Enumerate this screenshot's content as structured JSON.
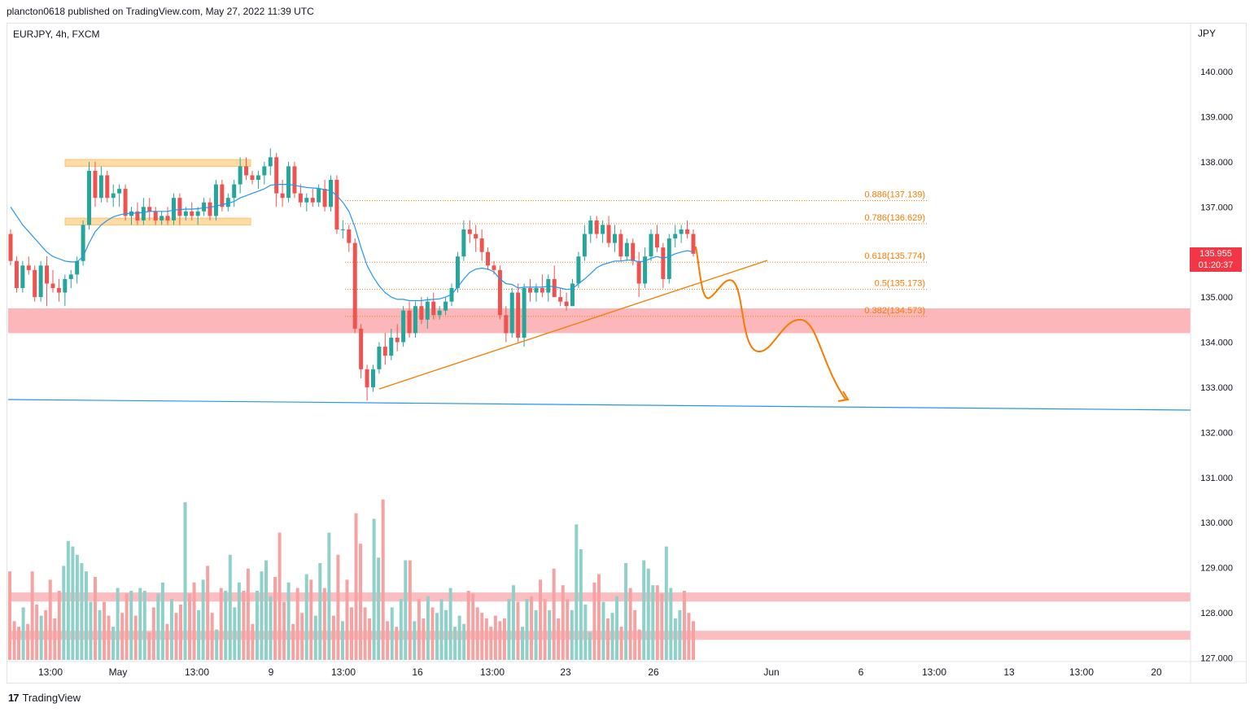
{
  "header": {
    "published_text": "plancton0618 published on TradingView.com, May 27, 2022 11:39 UTC",
    "symbol_text": "EURJPY, 4h, FXCM",
    "currency": "JPY"
  },
  "footer": {
    "brand_mark": "17",
    "brand_name": "TradingView"
  },
  "last_price": {
    "price": "135.955",
    "countdown": "01:20:37"
  },
  "colors": {
    "up": "#26a69a",
    "down": "#ef5350",
    "ema": "#2196f3",
    "fib": "#f57c00",
    "zone_red": "#f77c80",
    "zone_orange": "#ffb74d",
    "volume_up": "#8fd0c9",
    "volume_down": "#f4a3a2"
  },
  "chart_data": {
    "type": "candlestick",
    "title": "EURJPY, 4h, FXCM",
    "ylabel": "JPY",
    "ylim": [
      126.9,
      141.0
    ],
    "y_ticks": [
      "140.000",
      "139.000",
      "138.000",
      "137.000",
      "136.000",
      "135.000",
      "134.000",
      "133.000",
      "132.000",
      "131.000",
      "130.000",
      "129.000",
      "128.000",
      "127.000"
    ],
    "x_ticks": [
      "13:00",
      "May",
      "13:00",
      "9",
      "13:00",
      "16",
      "13:00",
      "23",
      "26",
      "Jun",
      "6",
      "13:00",
      "13",
      "13:00",
      "20"
    ],
    "fib_levels": [
      {
        "ratio": "0.886",
        "price": "137.139",
        "label": "0.886(137.139)"
      },
      {
        "ratio": "0.786",
        "price": "136.629",
        "label": "0.786(136.629)"
      },
      {
        "ratio": "0.618",
        "price": "135.774",
        "label": "0.618(135.774)"
      },
      {
        "ratio": "0.5",
        "price": "135.173",
        "label": "0.5(135.173)"
      },
      {
        "ratio": "0.382",
        "price": "134.573",
        "label": "0.382(134.573)"
      }
    ],
    "support_zone": {
      "top": 134.75,
      "bottom": 134.2
    },
    "range_zones": [
      {
        "top": 138.05,
        "bottom": 137.9
      },
      {
        "top": 136.75,
        "bottom": 136.6
      }
    ],
    "volume_zones": [
      {
        "top": 128.45,
        "bottom": 128.25
      },
      {
        "top": 127.6,
        "bottom": 127.4
      }
    ],
    "candles": [
      [
        136.4,
        136.5,
        135.7,
        135.8
      ],
      [
        135.8,
        135.9,
        135.1,
        135.2
      ],
      [
        135.2,
        135.8,
        135.1,
        135.7
      ],
      [
        135.7,
        135.9,
        135.5,
        135.6
      ],
      [
        135.6,
        135.7,
        134.9,
        135.0
      ],
      [
        135.0,
        135.8,
        134.9,
        135.7
      ],
      [
        135.7,
        135.9,
        134.8,
        135.3
      ],
      [
        135.3,
        135.6,
        135.1,
        135.2
      ],
      [
        135.2,
        135.4,
        134.9,
        135.1
      ],
      [
        135.1,
        135.5,
        134.8,
        135.4
      ],
      [
        135.4,
        135.6,
        135.2,
        135.5
      ],
      [
        135.5,
        135.9,
        135.3,
        135.8
      ],
      [
        135.8,
        136.7,
        135.7,
        136.6
      ],
      [
        136.6,
        138.0,
        136.5,
        137.8
      ],
      [
        137.8,
        138.0,
        137.0,
        137.2
      ],
      [
        137.2,
        137.9,
        137.1,
        137.7
      ],
      [
        137.7,
        137.8,
        137.1,
        137.2
      ],
      [
        137.2,
        137.5,
        137.0,
        137.3
      ],
      [
        137.3,
        137.5,
        137.0,
        137.4
      ],
      [
        137.4,
        137.5,
        136.7,
        136.8
      ],
      [
        136.8,
        137.0,
        136.6,
        136.9
      ],
      [
        136.9,
        137.1,
        136.6,
        136.7
      ],
      [
        136.7,
        137.2,
        136.6,
        137.0
      ],
      [
        137.0,
        137.2,
        136.7,
        136.9
      ],
      [
        136.9,
        137.0,
        136.6,
        136.7
      ],
      [
        136.7,
        136.9,
        136.6,
        136.8
      ],
      [
        136.8,
        137.0,
        136.6,
        136.7
      ],
      [
        136.7,
        137.3,
        136.6,
        137.2
      ],
      [
        137.2,
        137.3,
        136.6,
        136.8
      ],
      [
        136.8,
        137.0,
        136.7,
        136.9
      ],
      [
        136.9,
        137.1,
        136.7,
        136.8
      ],
      [
        136.8,
        137.0,
        136.6,
        136.9
      ],
      [
        136.9,
        137.2,
        136.8,
        137.1
      ],
      [
        137.1,
        137.2,
        136.7,
        136.8
      ],
      [
        136.8,
        137.6,
        136.7,
        137.5
      ],
      [
        137.5,
        137.6,
        136.9,
        137.0
      ],
      [
        137.0,
        137.3,
        136.9,
        137.2
      ],
      [
        137.2,
        137.6,
        137.0,
        137.5
      ],
      [
        137.5,
        138.1,
        137.3,
        137.9
      ],
      [
        137.9,
        138.1,
        137.6,
        137.7
      ],
      [
        137.7,
        137.8,
        137.5,
        137.6
      ],
      [
        137.6,
        137.8,
        137.4,
        137.7
      ],
      [
        137.7,
        138.0,
        137.5,
        137.9
      ],
      [
        137.9,
        138.3,
        137.7,
        138.1
      ],
      [
        138.1,
        138.2,
        137.0,
        137.3
      ],
      [
        137.3,
        137.6,
        137.0,
        137.2
      ],
      [
        137.2,
        138.0,
        137.1,
        137.9
      ],
      [
        137.9,
        138.0,
        137.2,
        137.3
      ],
      [
        137.3,
        137.5,
        137.0,
        137.1
      ],
      [
        137.1,
        137.3,
        136.9,
        137.2
      ],
      [
        137.2,
        137.4,
        137.0,
        137.1
      ],
      [
        137.1,
        137.5,
        137.0,
        137.4
      ],
      [
        137.4,
        137.6,
        136.9,
        137.0
      ],
      [
        137.0,
        137.7,
        136.9,
        137.6
      ],
      [
        137.6,
        137.7,
        136.4,
        136.5
      ],
      [
        136.5,
        136.7,
        136.3,
        136.5
      ],
      [
        136.5,
        136.6,
        136.0,
        136.2
      ],
      [
        136.2,
        136.3,
        134.2,
        134.3
      ],
      [
        134.3,
        134.4,
        133.2,
        133.4
      ],
      [
        133.4,
        133.5,
        132.7,
        133.0
      ],
      [
        133.0,
        133.5,
        132.9,
        133.4
      ],
      [
        133.4,
        134.0,
        133.3,
        133.9
      ],
      [
        133.9,
        134.2,
        133.5,
        133.7
      ],
      [
        133.7,
        134.3,
        133.6,
        134.1
      ],
      [
        134.1,
        134.4,
        133.8,
        134.0
      ],
      [
        134.0,
        134.8,
        133.9,
        134.7
      ],
      [
        134.7,
        134.9,
        134.1,
        134.2
      ],
      [
        134.2,
        134.9,
        134.1,
        134.8
      ],
      [
        134.8,
        135.0,
        134.4,
        134.5
      ],
      [
        134.5,
        135.0,
        134.3,
        134.9
      ],
      [
        134.9,
        135.1,
        134.5,
        134.6
      ],
      [
        134.6,
        134.8,
        134.5,
        134.7
      ],
      [
        134.7,
        135.0,
        134.6,
        134.9
      ],
      [
        134.9,
        135.3,
        134.8,
        135.2
      ],
      [
        135.2,
        136.0,
        135.1,
        135.9
      ],
      [
        135.9,
        136.7,
        135.8,
        136.5
      ],
      [
        136.5,
        136.7,
        136.2,
        136.4
      ],
      [
        136.4,
        136.6,
        136.0,
        136.3
      ],
      [
        136.3,
        136.5,
        135.8,
        136.0
      ],
      [
        136.0,
        136.1,
        135.6,
        135.7
      ],
      [
        135.7,
        135.8,
        135.5,
        135.6
      ],
      [
        135.6,
        135.7,
        134.5,
        134.6
      ],
      [
        134.6,
        134.8,
        134.0,
        134.2
      ],
      [
        134.2,
        135.2,
        134.1,
        135.1
      ],
      [
        135.1,
        135.3,
        134.0,
        134.1
      ],
      [
        134.1,
        135.3,
        133.9,
        135.2
      ],
      [
        135.2,
        135.4,
        134.9,
        135.1
      ],
      [
        135.1,
        135.3,
        134.9,
        135.2
      ],
      [
        135.2,
        135.5,
        135.0,
        135.1
      ],
      [
        135.1,
        135.5,
        134.9,
        135.4
      ],
      [
        135.4,
        135.7,
        135.1,
        135.0
      ],
      [
        135.0,
        135.2,
        134.8,
        134.9
      ],
      [
        134.9,
        135.1,
        134.7,
        134.8
      ],
      [
        134.8,
        135.4,
        134.8,
        135.3
      ],
      [
        135.3,
        136.0,
        135.2,
        135.9
      ],
      [
        135.9,
        136.6,
        135.8,
        136.4
      ],
      [
        136.4,
        136.8,
        136.2,
        136.7
      ],
      [
        136.7,
        136.8,
        136.3,
        136.4
      ],
      [
        136.4,
        136.7,
        136.2,
        136.6
      ],
      [
        136.6,
        136.8,
        136.1,
        136.2
      ],
      [
        136.2,
        136.6,
        136.0,
        136.4
      ],
      [
        136.4,
        136.5,
        135.8,
        135.9
      ],
      [
        135.9,
        136.3,
        135.8,
        136.2
      ],
      [
        136.2,
        136.3,
        135.7,
        135.8
      ],
      [
        135.8,
        136.0,
        135.0,
        135.3
      ],
      [
        135.3,
        136.1,
        135.2,
        135.9
      ],
      [
        135.9,
        136.5,
        135.8,
        136.4
      ],
      [
        136.4,
        136.6,
        136.0,
        136.1
      ],
      [
        136.1,
        136.2,
        135.2,
        135.4
      ],
      [
        135.4,
        136.4,
        135.3,
        136.3
      ],
      [
        136.3,
        136.6,
        136.1,
        136.4
      ],
      [
        136.4,
        136.6,
        136.2,
        136.5
      ],
      [
        136.5,
        136.7,
        136.3,
        136.4
      ],
      [
        136.4,
        136.5,
        135.9,
        135.96
      ]
    ],
    "ema": [
      137.0,
      136.8,
      136.6,
      136.45,
      136.3,
      136.15,
      136.0,
      135.9,
      135.85,
      135.8,
      135.78,
      135.78,
      135.9,
      136.2,
      136.45,
      136.6,
      136.7,
      136.78,
      136.82,
      136.85,
      136.86,
      136.86,
      136.88,
      136.9,
      136.9,
      136.9,
      136.9,
      136.93,
      136.94,
      136.95,
      136.95,
      136.96,
      136.98,
      136.99,
      137.02,
      137.05,
      137.08,
      137.12,
      137.2,
      137.25,
      137.3,
      137.35,
      137.4,
      137.48,
      137.5,
      137.5,
      137.5,
      137.48,
      137.45,
      137.43,
      137.42,
      137.41,
      137.38,
      137.36,
      137.25,
      137.1,
      136.9,
      136.55,
      136.1,
      135.7,
      135.45,
      135.25,
      135.1,
      135.0,
      134.95,
      134.95,
      134.92,
      134.92,
      134.92,
      134.94,
      134.95,
      134.96,
      135.0,
      135.06,
      135.22,
      135.4,
      135.55,
      135.62,
      135.64,
      135.62,
      135.56,
      135.4,
      135.3,
      135.28,
      135.2,
      135.22,
      135.22,
      135.22,
      135.22,
      135.24,
      135.23,
      135.2,
      135.17,
      135.18,
      135.3,
      135.4,
      135.52,
      135.65,
      135.72,
      135.76,
      135.8,
      135.8,
      135.82,
      135.82,
      135.78,
      135.8,
      135.86,
      135.9,
      135.86,
      135.9,
      135.96,
      136.0,
      136.03,
      136.0
    ],
    "volume": [
      3.2,
      1.4,
      1.2,
      1.9,
      1.3,
      3.2,
      2.0,
      1.6,
      1.8,
      2.9,
      1.5,
      2.5,
      3.4,
      4.3,
      4.1,
      3.8,
      3.5,
      3.2,
      2.1,
      3.0,
      1.8,
      2.1,
      1.6,
      1.2,
      2.6,
      1.7,
      2.4,
      2.5,
      1.6,
      2.6,
      2.5,
      1.0,
      1.9,
      2.4,
      2.8,
      1.3,
      2.2,
      1.7,
      2.0,
      5.7,
      2.4,
      2.8,
      1.8,
      2.9,
      3.4,
      1.7,
      1.1,
      2.6,
      2.5,
      3.8,
      1.9,
      2.8,
      2.5,
      3.3,
      1.3,
      2.5,
      3.2,
      3.6,
      2.3,
      3.0,
      4.6,
      2.1,
      2.8,
      1.3,
      2.6,
      1.7,
      3.1,
      2.9,
      1.6,
      3.5,
      2.6,
      4.6,
      1.6,
      3.8,
      1.4,
      2.9,
      1.9,
      5.3,
      4.2,
      1.9,
      1.5,
      5.1,
      3.7,
      5.8,
      1.4,
      1.9,
      1.2,
      2.2,
      3.6,
      3.6,
      1.4,
      2.2,
      1.5,
      2.3,
      1.9,
      1.7,
      2.2,
      1.8,
      2.6,
      1.2,
      1.6,
      1.3,
      2.5,
      2.4,
      1.9,
      1.7,
      1.5,
      1.2,
      1.6,
      1.4,
      1.5,
      2.2,
      2.7,
      2.1,
      1.2,
      2.2,
      2.3,
      1.8,
      2.9,
      2.2,
      1.8,
      3.3,
      1.5,
      2.7,
      2.2,
      1.8,
      4.9,
      4.0,
      2.0,
      1.0,
      2.8,
      3.1,
      2.1,
      1.5,
      1.7,
      2.3,
      1.2,
      3.5,
      2.6,
      1.8,
      1.1,
      3.6,
      3.3,
      2.7,
      2.7,
      2.4,
      4.1,
      2.6,
      1.5,
      1.8,
      2.5,
      1.7,
      1.4
    ]
  }
}
